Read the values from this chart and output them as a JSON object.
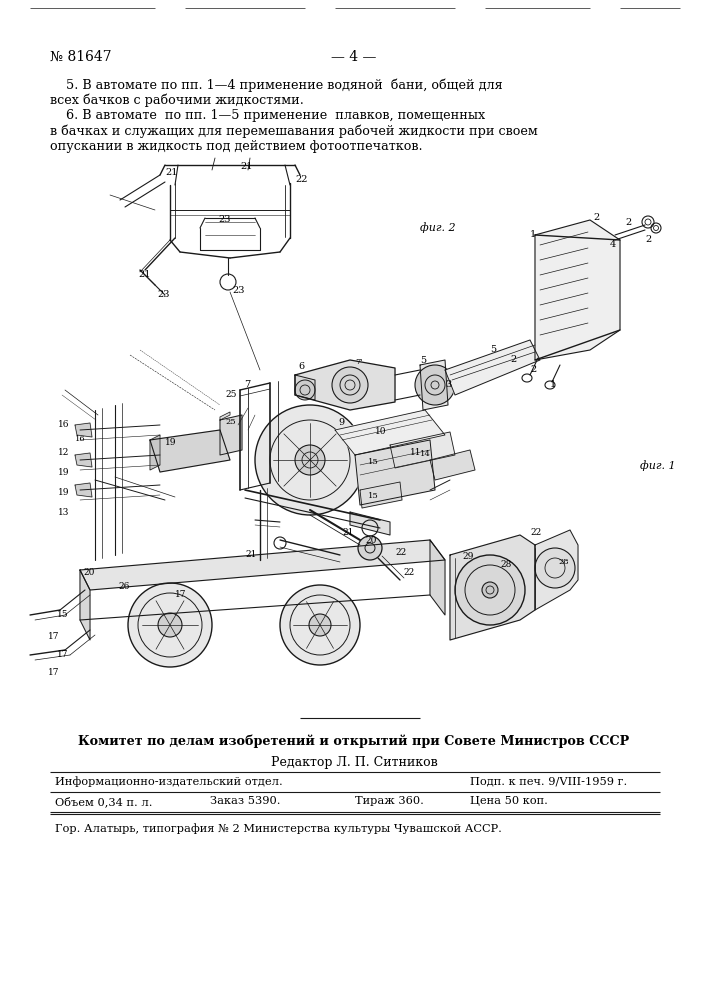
{
  "bg_color": "#ffffff",
  "page_number_left": "№ 81647",
  "page_number_center": "— 4 —",
  "top_text_lines": [
    "    5. В автомате по пп. 1—4 применение водяной  бани, общей для",
    "всех бачков с рабочими жидкостями.",
    "    6. В автомате  по пп. 1—5 применение  плавков, помещенных",
    "в бачках и служащих для перемешавания рабочей жидкости при своем",
    "опускании в жидкость под действием фотоотпечатков."
  ],
  "bottom_org_text": "Комитет по делам изобретений и открытий при Совете Министров СССР",
  "editor_line": "Редактор Л. П. Ситников",
  "table_row1_col1": "Информационно-издательский отдел.",
  "table_row1_col2": "Подп. к печ. 9/VIII-1959 г.",
  "table_row2_col1": "Объем 0,34 п. л.",
  "table_row2_col2": "Заказ 5390.",
  "table_row2_col3": "Тираж 360.",
  "table_row2_col4": "Цена 50 коп.",
  "footer_text": "Гор. Алатырь, типография № 2 Министерства культуры Чувашской АССР.",
  "text_color": "#000000",
  "line_color": "#000000",
  "fig2_label": "фиг. 2",
  "fig1_label": "фиг. 1"
}
